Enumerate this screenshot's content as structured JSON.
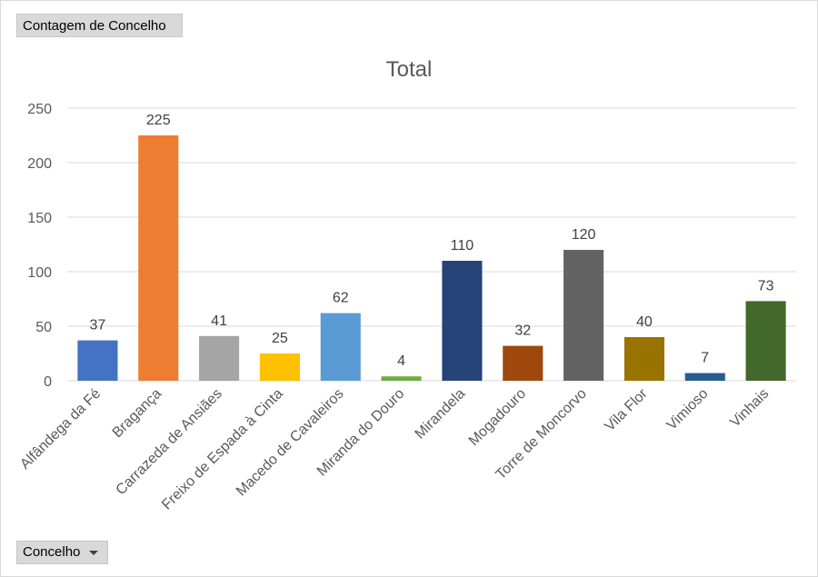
{
  "field_buttons": {
    "values": "Contagem de Concelho",
    "axis": "Concelho"
  },
  "chart_data": {
    "type": "bar",
    "title": "Total",
    "xlabel": "",
    "ylabel": "",
    "ylim": [
      0,
      250
    ],
    "yticks": [
      0,
      50,
      100,
      150,
      200,
      250
    ],
    "grid": true,
    "categories": [
      "Alfândega da Fé",
      "Bragança",
      "Carrazeda de Ansiães",
      "Freixo de Espada à Cinta",
      "Macedo de Cavaleiros",
      "Miranda do Douro",
      "Mirandela",
      "Mogadouro",
      "Torre de Moncorvo",
      "Vila Flor",
      "Vimioso",
      "Vinhais"
    ],
    "values": [
      37,
      225,
      41,
      25,
      62,
      4,
      110,
      32,
      120,
      40,
      7,
      73
    ],
    "colors": [
      "#4472c4",
      "#ed7d31",
      "#a5a5a5",
      "#ffc000",
      "#5b9bd5",
      "#70ad47",
      "#264478",
      "#9e480e",
      "#636363",
      "#997300",
      "#255e91",
      "#43682b"
    ]
  }
}
